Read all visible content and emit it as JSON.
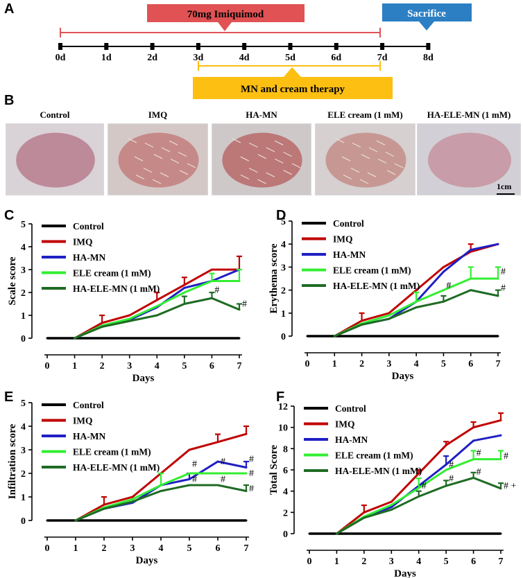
{
  "panels": {
    "a": "A",
    "b": "B",
    "c": "C",
    "d": "D",
    "e": "E",
    "f": "F"
  },
  "timeline": {
    "imiquimod_label": "70mg Imiquimod",
    "sacrifice_label": "Sacrifice",
    "therapy_label": "MN and cream therapy",
    "day_labels": [
      "0d",
      "1d",
      "2d",
      "3d",
      "4d",
      "5d",
      "6d",
      "7d",
      "8d"
    ],
    "colors": {
      "imiquimod": "#e05254",
      "sacrifice": "#2c7fc3",
      "therapy": "#fdbf12"
    }
  },
  "photos": {
    "labels": [
      "Control",
      "IMQ",
      "HA-MN",
      "ELE cream (1 mM)",
      "HA-ELE-MN (1 mM)"
    ],
    "scale_bar": "1cm",
    "tones": [
      {
        "bg": "#d9d2d6",
        "lesion": "#b77e8e"
      },
      {
        "bg": "#d3c8c6",
        "lesion": "#c27f7c"
      },
      {
        "bg": "#cfc8c8",
        "lesion": "#b76a68"
      },
      {
        "bg": "#d6d0d0",
        "lesion": "#c48e88"
      },
      {
        "bg": "#d2cfd6",
        "lesion": "#c793a0"
      }
    ]
  },
  "series_styles": [
    {
      "name": "Control",
      "color": "#000000"
    },
    {
      "name": "IMQ",
      "color": "#c00000"
    },
    {
      "name": "HA-MN",
      "color": "#1f1fc4"
    },
    {
      "name": "ELE cream (1 mM)",
      "color": "#33ee33"
    },
    {
      "name": "HA-ELE-MN (1 mM)",
      "color": "#1e6b23"
    }
  ],
  "chart_data": [
    {
      "panel": "C",
      "type": "line",
      "title": "",
      "xlabel": "Days",
      "ylabel": "Scale score",
      "x": [
        0,
        1,
        2,
        3,
        4,
        5,
        6,
        7
      ],
      "ylim": [
        0,
        5
      ],
      "yticks": [
        0,
        1,
        2,
        3,
        4,
        5
      ],
      "xticks": [
        0,
        1,
        2,
        3,
        4,
        5,
        6,
        7
      ],
      "series": [
        {
          "name": "Control",
          "x": [
            0,
            1,
            2,
            3,
            4,
            5,
            6,
            7
          ],
          "values": [
            0,
            0,
            0,
            0,
            0,
            0,
            0,
            0
          ],
          "err": [
            0,
            0,
            0,
            0,
            0,
            0,
            0,
            0
          ]
        },
        {
          "name": "IMQ",
          "x": [
            1,
            2,
            3,
            4,
            5,
            6,
            7
          ],
          "values": [
            0,
            0.67,
            1,
            1.67,
            2.33,
            3,
            3
          ],
          "err": [
            0,
            0.33,
            0,
            0.33,
            0.33,
            0,
            0.58
          ]
        },
        {
          "name": "HA-MN",
          "x": [
            1,
            2,
            3,
            4,
            5,
            6,
            7
          ],
          "values": [
            0,
            0.55,
            0.8,
            1.35,
            2.2,
            2.5,
            3
          ],
          "err": [
            0,
            0,
            0,
            0,
            0,
            0,
            0
          ]
        },
        {
          "name": "ELE cream (1 mM)",
          "x": [
            1,
            2,
            3,
            4,
            5,
            6,
            7
          ],
          "values": [
            0,
            0.55,
            0.85,
            1.4,
            2,
            2.5,
            2.5
          ],
          "err": [
            0,
            0,
            0,
            0,
            0,
            0.33,
            0.5
          ]
        },
        {
          "name": "HA-ELE-MN (1 mM)",
          "x": [
            1,
            2,
            3,
            4,
            5,
            6,
            7
          ],
          "values": [
            0,
            0.5,
            0.75,
            1,
            1.5,
            1.75,
            1.25
          ],
          "err": [
            0,
            0,
            0,
            0,
            0.33,
            0.25,
            0.25
          ]
        }
      ],
      "annotations": [
        {
          "text": "#",
          "x": 6,
          "y": 2.1
        },
        {
          "text": "#",
          "x": 7,
          "y": 1.5
        }
      ]
    },
    {
      "panel": "D",
      "type": "line",
      "title": "",
      "xlabel": "Days",
      "ylabel": "Erythema score",
      "x": [
        0,
        1,
        2,
        3,
        4,
        5,
        6,
        7
      ],
      "ylim": [
        0,
        5
      ],
      "yticks": [
        0,
        1,
        2,
        3,
        4,
        5
      ],
      "xticks": [
        0,
        1,
        2,
        3,
        4,
        5,
        6,
        7
      ],
      "series": [
        {
          "name": "Control",
          "x": [
            0,
            1,
            2,
            3,
            4,
            5,
            6,
            7
          ],
          "values": [
            0,
            0,
            0,
            0,
            0,
            0,
            0,
            0
          ],
          "err": [
            0,
            0,
            0,
            0,
            0,
            0,
            0,
            0
          ]
        },
        {
          "name": "IMQ",
          "x": [
            1,
            2,
            3,
            4,
            5,
            6,
            7
          ],
          "values": [
            0,
            0.67,
            1,
            2,
            3,
            3.67,
            4
          ],
          "err": [
            0,
            0.33,
            0,
            0,
            0,
            0.33,
            0
          ]
        },
        {
          "name": "HA-MN",
          "x": [
            1,
            2,
            3,
            4,
            5,
            6,
            7
          ],
          "values": [
            0,
            0.5,
            0.75,
            1.5,
            2.8,
            3.75,
            4
          ],
          "err": [
            0,
            0,
            0,
            0,
            0,
            0,
            0
          ]
        },
        {
          "name": "ELE cream (1 mM)",
          "x": [
            1,
            2,
            3,
            4,
            5,
            6,
            7
          ],
          "values": [
            0,
            0.55,
            0.9,
            1.5,
            2,
            2.5,
            2.5
          ],
          "err": [
            0,
            0,
            0,
            0.4,
            0,
            0.5,
            0.5
          ]
        },
        {
          "name": "HA-ELE-MN (1 mM)",
          "x": [
            1,
            2,
            3,
            4,
            5,
            6,
            7
          ],
          "values": [
            0,
            0.5,
            0.75,
            1.25,
            1.5,
            2,
            1.75
          ],
          "err": [
            0,
            0,
            0,
            0,
            0.25,
            0,
            0.25
          ]
        }
      ],
      "annotations": [
        {
          "text": "#",
          "x": 5,
          "y": 2.2
        },
        {
          "text": "#",
          "x": 7,
          "y": 2.8
        },
        {
          "text": "#",
          "x": 7,
          "y": 2.1
        }
      ]
    },
    {
      "panel": "E",
      "type": "line",
      "title": "",
      "xlabel": "Days",
      "ylabel": "Infiltration score",
      "x": [
        0,
        1,
        2,
        3,
        4,
        5,
        6,
        7
      ],
      "ylim": [
        0,
        5
      ],
      "yticks": [
        0,
        1,
        2,
        3,
        4,
        5
      ],
      "xticks": [
        0,
        1,
        2,
        3,
        4,
        5,
        6,
        7
      ],
      "series": [
        {
          "name": "Control",
          "x": [
            0,
            1,
            2,
            3,
            4,
            5,
            6,
            7
          ],
          "values": [
            0,
            0,
            0,
            0,
            0,
            0,
            0,
            0
          ],
          "err": [
            0,
            0,
            0,
            0,
            0,
            0,
            0,
            0
          ]
        },
        {
          "name": "IMQ",
          "x": [
            1,
            2,
            3,
            4,
            5,
            6,
            7
          ],
          "values": [
            0,
            0.67,
            1,
            2,
            3,
            3.33,
            3.67
          ],
          "err": [
            0,
            0.33,
            0,
            0,
            0,
            0.33,
            0.33
          ]
        },
        {
          "name": "HA-MN",
          "x": [
            1,
            2,
            3,
            4,
            5,
            6,
            7
          ],
          "values": [
            0,
            0.5,
            0.75,
            1.5,
            1.75,
            2.5,
            2.25
          ],
          "err": [
            0,
            0,
            0,
            0,
            0.25,
            0,
            0.25
          ]
        },
        {
          "name": "ELE cream (1 mM)",
          "x": [
            1,
            2,
            3,
            4,
            5,
            6,
            7
          ],
          "values": [
            0,
            0.55,
            0.9,
            1.5,
            2,
            2,
            2
          ],
          "err": [
            0,
            0,
            0,
            0.5,
            0,
            0,
            0
          ]
        },
        {
          "name": "HA-ELE-MN (1 mM)",
          "x": [
            1,
            2,
            3,
            4,
            5,
            6,
            7
          ],
          "values": [
            0,
            0.5,
            0.8,
            1.25,
            1.5,
            1.5,
            1.25
          ],
          "err": [
            0,
            0,
            0,
            0,
            0,
            0,
            0.25
          ]
        }
      ],
      "annotations": [
        {
          "text": "#",
          "x": 5,
          "y": 2.4
        },
        {
          "text": "#",
          "x": 5,
          "y": 1.75
        },
        {
          "text": "#",
          "x": 6,
          "y": 2.5
        },
        {
          "text": "#",
          "x": 6,
          "y": 1.75
        },
        {
          "text": "#",
          "x": 7,
          "y": 2.6
        },
        {
          "text": "#",
          "x": 7,
          "y": 2.0
        },
        {
          "text": "#",
          "x": 7,
          "y": 1.35
        }
      ]
    },
    {
      "panel": "F",
      "type": "line",
      "title": "",
      "xlabel": "Days",
      "ylabel": "Total Score",
      "x": [
        0,
        1,
        2,
        3,
        4,
        5,
        6,
        7
      ],
      "ylim": [
        0,
        12
      ],
      "yticks": [
        0,
        2,
        4,
        6,
        8,
        10,
        12
      ],
      "xticks": [
        0,
        1,
        2,
        3,
        4,
        5,
        6,
        7
      ],
      "series": [
        {
          "name": "Control",
          "x": [
            0,
            1,
            2,
            3,
            4,
            5,
            6,
            7
          ],
          "values": [
            0,
            0,
            0,
            0,
            0,
            0,
            0,
            0
          ],
          "err": [
            0,
            0,
            0,
            0,
            0,
            0,
            0,
            0
          ]
        },
        {
          "name": "IMQ",
          "x": [
            1,
            2,
            3,
            4,
            5,
            6,
            7
          ],
          "values": [
            0,
            2,
            3,
            5.67,
            8.33,
            10,
            10.67
          ],
          "err": [
            0,
            0.67,
            0,
            0.33,
            0.33,
            0.5,
            0.67
          ]
        },
        {
          "name": "HA-MN",
          "x": [
            1,
            2,
            3,
            4,
            5,
            6,
            7
          ],
          "values": [
            0,
            1.5,
            2.5,
            4.5,
            6.5,
            8.75,
            9.25
          ],
          "err": [
            0,
            0,
            0,
            0,
            0.8,
            0,
            0
          ]
        },
        {
          "name": "ELE cream (1 mM)",
          "x": [
            1,
            2,
            3,
            4,
            5,
            6,
            7
          ],
          "values": [
            0,
            1.6,
            2.7,
            4.3,
            6,
            7,
            7
          ],
          "err": [
            0,
            0,
            0,
            0.9,
            0,
            0.8,
            0.8
          ]
        },
        {
          "name": "HA-ELE-MN (1 mM)",
          "x": [
            1,
            2,
            3,
            4,
            5,
            6,
            7
          ],
          "values": [
            0,
            1.5,
            2.25,
            3.5,
            4.5,
            5.25,
            4.25
          ],
          "err": [
            0,
            0,
            0,
            0.5,
            0.5,
            0.5,
            0.5
          ]
        }
      ],
      "annotations": [
        {
          "text": "#",
          "x": 4,
          "y": 4.5
        },
        {
          "text": "#",
          "x": 5,
          "y": 6.5
        },
        {
          "text": "#",
          "x": 5,
          "y": 5.2
        },
        {
          "text": "#",
          "x": 6,
          "y": 7.6
        },
        {
          "text": "#",
          "x": 6,
          "y": 5.8
        },
        {
          "text": "#",
          "x": 7,
          "y": 7.3
        },
        {
          "text": "# +",
          "x": 7,
          "y": 4.5
        }
      ]
    }
  ]
}
